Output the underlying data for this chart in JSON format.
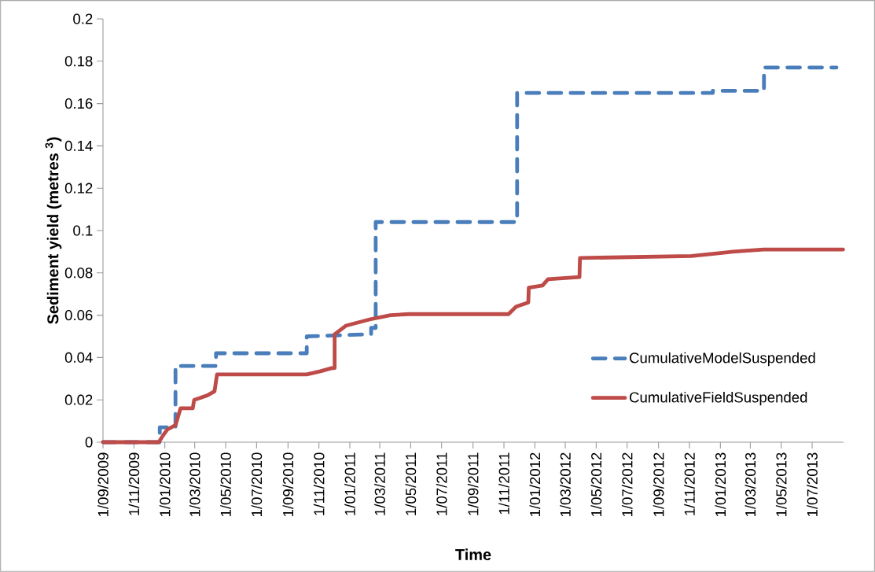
{
  "chart_data": {
    "type": "line",
    "xlabel": "Time",
    "ylabel": "Sediment yield (metres $^{3}$)",
    "xlim": [
      "2009-09-01",
      "2013-09-01"
    ],
    "xticks": [
      {
        "value": "2009-09-01",
        "label": "1/09/2009"
      },
      {
        "value": "2009-11-01",
        "label": "1/11/2009"
      },
      {
        "value": "2010-01-01",
        "label": "1/01/2010"
      },
      {
        "value": "2010-03-01",
        "label": "1/03/2010"
      },
      {
        "value": "2010-05-01",
        "label": "1/05/2010"
      },
      {
        "value": "2010-07-01",
        "label": "1/07/2010"
      },
      {
        "value": "2010-09-01",
        "label": "1/09/2010"
      },
      {
        "value": "2010-11-01",
        "label": "1/11/2010"
      },
      {
        "value": "2011-01-01",
        "label": "1/01/2011"
      },
      {
        "value": "2011-03-01",
        "label": "1/03/2011"
      },
      {
        "value": "2011-05-01",
        "label": "1/05/2011"
      },
      {
        "value": "2011-07-01",
        "label": "1/07/2011"
      },
      {
        "value": "2011-09-01",
        "label": "1/09/2011"
      },
      {
        "value": "2011-11-01",
        "label": "1/11/2011"
      },
      {
        "value": "2012-01-01",
        "label": "1/01/2012"
      },
      {
        "value": "2012-03-01",
        "label": "1/03/2012"
      },
      {
        "value": "2012-05-01",
        "label": "1/05/2012"
      },
      {
        "value": "2012-07-01",
        "label": "1/07/2012"
      },
      {
        "value": "2012-09-01",
        "label": "1/09/2012"
      },
      {
        "value": "2012-11-01",
        "label": "1/11/2012"
      },
      {
        "value": "2013-01-01",
        "label": "1/01/2013"
      },
      {
        "value": "2013-03-01",
        "label": "1/03/2013"
      },
      {
        "value": "2013-05-01",
        "label": "1/05/2013"
      },
      {
        "value": "2013-07-01",
        "label": "1/07/2013"
      }
    ],
    "ylim": [
      0,
      0.2
    ],
    "yticks": [
      0,
      0.02,
      0.04,
      0.06,
      0.08,
      0.1,
      0.12,
      0.14,
      0.16,
      0.18,
      0.2
    ],
    "legend": "bottom right",
    "grid": false,
    "series": [
      {
        "name": "CumulativeModelSuspended",
        "color": "#4a7ebb",
        "line_style": "dashed",
        "x": [
          "2009-09-01",
          "2009-12-22",
          "2009-12-22",
          "2010-01-22",
          "2010-01-22",
          "2010-04-12",
          "2010-04-12",
          "2010-10-08",
          "2010-10-08",
          "2011-02-12",
          "2011-02-12",
          "2011-02-21",
          "2011-02-21",
          "2011-11-27",
          "2011-11-27",
          "2012-12-17",
          "2012-12-17",
          "2013-03-28",
          "2013-03-28",
          "2013-08-18"
        ],
        "values": [
          0,
          0,
          0.007,
          0.007,
          0.036,
          0.036,
          0.042,
          0.042,
          0.05,
          0.051,
          0.054,
          0.054,
          0.104,
          0.104,
          0.165,
          0.165,
          0.166,
          0.166,
          0.177,
          0.177
        ]
      },
      {
        "name": "CumulativeFieldSuspended",
        "color": "#be4b48",
        "line_style": "solid",
        "x": [
          "2009-09-01",
          "2009-12-20",
          "2009-12-28",
          "2010-01-06",
          "2010-01-22",
          "2010-02-01",
          "2010-02-25",
          "2010-02-28",
          "2010-03-25",
          "2010-04-09",
          "2010-04-14",
          "2010-10-08",
          "2010-11-04",
          "2010-11-26",
          "2010-12-02",
          "2010-12-02",
          "2010-12-24",
          "2011-02-09",
          "2011-03-22",
          "2011-04-27",
          "2011-11-10",
          "2011-11-25",
          "2011-12-19",
          "2011-12-20",
          "2012-01-16",
          "2012-01-27",
          "2012-03-29",
          "2012-03-30",
          "2012-11-05",
          "2012-12-17",
          "2013-01-26",
          "2013-03-27",
          "2013-08-31"
        ],
        "values": [
          0,
          0,
          0.003,
          0.006,
          0.008,
          0.016,
          0.016,
          0.02,
          0.022,
          0.024,
          0.032,
          0.032,
          0.0335,
          0.035,
          0.035,
          0.051,
          0.055,
          0.058,
          0.06,
          0.0605,
          0.0605,
          0.064,
          0.066,
          0.073,
          0.074,
          0.077,
          0.078,
          0.087,
          0.088,
          0.089,
          0.09,
          0.091,
          0.091
        ]
      }
    ]
  }
}
